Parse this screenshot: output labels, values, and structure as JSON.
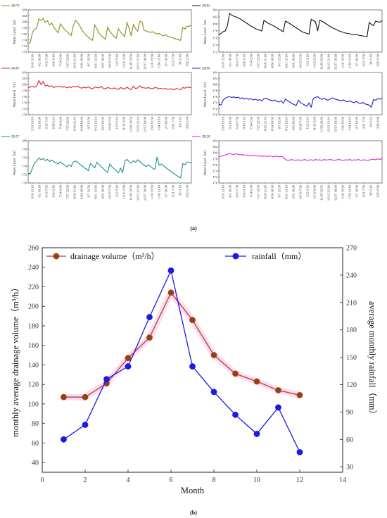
{
  "figure": {
    "panel_a_label": "(a)",
    "panel_b_label": "(b)"
  },
  "chart_data": [
    {
      "type": "line",
      "id": "ZK74",
      "legend": "ZK74",
      "color": "#8c8c1a",
      "ylabel": "Water Level（m）",
      "ylim": [
        170,
        184
      ],
      "yticks": [
        170,
        172,
        174,
        176,
        178,
        180,
        182,
        184
      ],
      "xticks": [
        "5/19 13:10",
        "6/2 10:30",
        "6/16 7:50",
        "6/30 5:10",
        "7/14 2:30",
        "7/27 23:50",
        "8/10 21:10",
        "8/24 18:30",
        "9/7 15:50",
        "9/21 13:10",
        "10/5 10:30",
        "10/19 7:50",
        "11/2 5:10",
        "11/16 2:30",
        "11/29 23:50",
        "12/13 21:10",
        "12/27 18:30",
        "1/10 15:50",
        "1/24 13:10",
        "2/7 10:30",
        "2/21 7:50",
        "3/6 5:10",
        "3/20 2:30"
      ],
      "y": [
        172.8,
        173.2,
        176.5,
        177.5,
        178.0,
        181.0,
        180.5,
        181.2,
        179.8,
        180.4,
        179.0,
        179.6,
        178.2,
        177.2,
        176.4,
        179.4,
        178.3,
        177.5,
        176.8,
        176.2,
        175.5,
        178.6,
        180.5,
        179.8,
        178.7,
        177.3,
        176.4,
        175.6,
        174.9,
        174.4,
        173.9,
        179.0,
        177.7,
        176.3,
        175.5,
        174.9,
        174.2,
        178.3,
        176.9,
        176.0,
        175.2,
        174.6,
        177.7,
        176.7,
        175.9,
        175.1,
        179.8,
        177.9,
        175.3,
        179.2,
        177.8,
        176.9,
        180.2,
        180.0,
        177.2,
        177.0,
        176.7,
        176.5,
        176.8,
        176.3,
        176.0,
        176.2,
        175.7,
        175.4,
        175.8,
        175.2,
        175.0,
        174.9,
        174.5,
        174.3,
        174.1,
        173.9,
        178.2,
        177.6,
        178.6,
        178.5,
        179.0
      ]
    },
    {
      "type": "line",
      "id": "ZK82",
      "legend": "ZK82",
      "color": "#111111",
      "ylabel": "Water Level（m）",
      "ylim": [
        172,
        184
      ],
      "yticks": [
        172,
        174,
        176,
        178,
        180,
        182,
        184
      ],
      "xticks": [
        "5/19 13:10",
        "6/2 10:30",
        "6/16 7:50",
        "6/30 5:10",
        "7/14 2:30",
        "7/27 23:50",
        "8/10 21:10",
        "8/24 18:30",
        "9/7 15:50",
        "9/21 13:10",
        "10/5 10:30",
        "10/19 7:50",
        "11/2 5:10",
        "11/16 2:30",
        "11/29 23:50",
        "12/13 21:10",
        "12/27 18:30",
        "1/10 15:50",
        "1/24 13:10",
        "2/7 10:30",
        "2/21 7:50",
        "3/6 5:10",
        "3/20 2:30"
      ],
      "y": [
        177.0,
        177.3,
        177.8,
        178.0,
        179.5,
        183.0,
        182.5,
        182.2,
        182.0,
        181.7,
        181.4,
        181.0,
        180.6,
        180.2,
        179.8,
        179.4,
        179.0,
        178.7,
        178.4,
        178.2,
        178.0,
        181.0,
        180.6,
        180.2,
        179.9,
        179.6,
        179.3,
        178.9,
        178.5,
        178.2,
        177.8,
        180.8,
        180.5,
        180.1,
        179.7,
        179.3,
        178.9,
        178.5,
        178.1,
        177.7,
        177.5,
        177.3,
        177.1,
        181.3,
        181.0,
        180.6,
        178.0,
        181.0,
        180.8,
        180.4,
        180.0,
        179.6,
        179.2,
        178.9,
        178.6,
        178.3,
        178.0,
        177.8,
        177.6,
        177.4,
        177.3,
        177.2,
        177.0,
        176.9,
        177.0,
        176.8,
        176.7,
        176.6,
        176.5,
        176.4,
        180.4,
        179.9,
        179.5,
        180.8,
        180.6,
        180.5,
        181.0
      ]
    },
    {
      "type": "line",
      "id": "ZK87",
      "legend": "ZK87",
      "color": "#e01f1f",
      "ylabel": "Water Level（m）",
      "ylim": [
        170,
        184
      ],
      "yticks": [
        170,
        172,
        174,
        176,
        178,
        180,
        182,
        184
      ],
      "xticks": [
        "5/19 13:10",
        "6/2 10:30",
        "6/16 7:50",
        "6/30 5:10",
        "7/14 2:30",
        "7/27 23:50",
        "8/10 21:10",
        "8/24 18:30",
        "9/7 15:50",
        "9/21 13:10",
        "10/5 10:30",
        "10/19 7:50",
        "11/2 5:10",
        "11/16 2:30",
        "11/29 23:50",
        "12/13 21:10",
        "12/27 18:30",
        "1/10 15:50",
        "1/24 13:10",
        "2/7 10:30",
        "2/21 7:50",
        "3/6 5:10",
        "3/20 2:30"
      ],
      "y": [
        179.0,
        179.2,
        179.4,
        179.1,
        179.6,
        181.3,
        180.0,
        181.0,
        179.5,
        179.8,
        179.3,
        179.6,
        179.0,
        179.4,
        179.2,
        179.5,
        179.1,
        179.3,
        178.9,
        179.2,
        179.0,
        179.4,
        179.2,
        179.5,
        179.0,
        178.8,
        179.1,
        178.9,
        179.3,
        178.8,
        178.6,
        179.2,
        179.0,
        178.9,
        179.4,
        178.7,
        178.6,
        179.0,
        178.8,
        178.5,
        178.9,
        178.6,
        178.4,
        179.0,
        178.7,
        178.5,
        179.2,
        178.6,
        178.3,
        179.5,
        178.7,
        178.9,
        179.6,
        179.0,
        178.9,
        178.8,
        179.0,
        178.7,
        178.6,
        179.0,
        178.9,
        178.6,
        178.8,
        178.5,
        178.7,
        178.4,
        178.6,
        178.5,
        178.3,
        178.7,
        178.5,
        178.3,
        179.0,
        178.8,
        179.2,
        179.0,
        179.1
      ]
    },
    {
      "type": "line",
      "id": "ZK90",
      "legend": "ZK90",
      "color": "#1a1ad6",
      "ylabel": "Water Level（m）",
      "ylim": [
        170,
        184
      ],
      "yticks": [
        170,
        172,
        174,
        176,
        178,
        180,
        182,
        184
      ],
      "xticks": [
        "5/19 13:10",
        "6/2 10:30",
        "6/16 7:50",
        "6/30 5:10",
        "7/14 2:30",
        "7/27 23:50",
        "8/10 21:10",
        "8/24 18:30",
        "9/7 15:50",
        "9/21 13:10",
        "10/5 10:30",
        "10/19 7:50",
        "11/2 5:10",
        "11/16 2:30",
        "11/29 23:50",
        "12/13 21:10",
        "12/27 18:30",
        "1/10 15:50",
        "1/24 13:10",
        "2/7 10:30",
        "2/21 7:50",
        "3/6 5:10",
        "3/20 2:30"
      ],
      "y": [
        173.5,
        173.2,
        174.8,
        175.5,
        175.8,
        176.0,
        175.7,
        175.9,
        175.6,
        175.8,
        175.4,
        175.6,
        175.2,
        175.5,
        175.1,
        175.3,
        174.9,
        175.2,
        174.8,
        175.0,
        174.6,
        175.3,
        175.4,
        175.1,
        174.8,
        174.6,
        174.9,
        174.4,
        174.2,
        174.6,
        173.8,
        175.2,
        174.6,
        174.2,
        173.7,
        173.4,
        173.0,
        174.8,
        174.0,
        173.6,
        173.2,
        172.8,
        173.9,
        172.5,
        175.4,
        175.7,
        176.0,
        175.4,
        175.1,
        175.5,
        175.0,
        174.8,
        175.3,
        175.6,
        175.2,
        175.0,
        174.8,
        174.6,
        174.9,
        174.5,
        174.3,
        174.6,
        174.2,
        174.0,
        174.4,
        173.9,
        173.7,
        174.1,
        173.6,
        173.4,
        173.2,
        172.5,
        175.0,
        174.8,
        175.3,
        175.2,
        175.3
      ]
    },
    {
      "type": "line",
      "id": "ZK57",
      "legend": "ZK57",
      "color": "#1a8c8c",
      "ylabel": "Water Level（m）",
      "ylim": [
        170,
        180
      ],
      "yticks": [
        170,
        172,
        174,
        176,
        178,
        180
      ],
      "xticks": [
        "5/19 13:10",
        "6/2 10:30",
        "6/16 7:50",
        "6/30 5:10",
        "7/14 2:30",
        "7/27 23:50",
        "8/10 21:10",
        "8/24 18:30",
        "9/7 15:50",
        "9/21 13:10",
        "10/5 10:30",
        "10/19 7:50",
        "11/2 5:10",
        "11/16 2:30",
        "11/29 23:50",
        "12/13 21:10",
        "12/27 18:30",
        "1/10 15:50",
        "1/24 13:10",
        "2/7 10:30",
        "2/21 7:50",
        "3/6 5:10",
        "3/20 2:30"
      ],
      "y": [
        172.3,
        172.2,
        173.5,
        174.8,
        175.2,
        175.9,
        175.5,
        175.8,
        175.3,
        175.6,
        175.1,
        175.4,
        175.0,
        174.8,
        174.5,
        175.0,
        174.6,
        174.2,
        173.8,
        174.3,
        173.9,
        175.0,
        175.2,
        174.9,
        174.5,
        174.1,
        173.7,
        173.3,
        172.9,
        174.6,
        174.1,
        173.6,
        174.9,
        174.4,
        173.9,
        173.4,
        172.9,
        172.5,
        174.5,
        173.9,
        173.4,
        172.9,
        172.4,
        173.5,
        172.5,
        175.2,
        175.6,
        175.0,
        174.7,
        175.3,
        174.9,
        175.5,
        175.1,
        174.6,
        174.2,
        173.9,
        174.3,
        173.9,
        173.5,
        173.2,
        176.2,
        174.2,
        174.5,
        174.1,
        173.7,
        173.3,
        172.9,
        172.5,
        172.2,
        171.8,
        171.5,
        171.2,
        174.6,
        174.3,
        175.0,
        174.8,
        174.9
      ]
    },
    {
      "type": "line",
      "id": "ZK28",
      "legend": "ZK28",
      "color": "#e01fe0",
      "ylabel": "Water Level（m）",
      "ylim": [
        170,
        184
      ],
      "yticks": [
        170,
        172,
        174,
        176,
        178,
        180,
        182,
        184
      ],
      "xticks": [
        "5/19 13:10",
        "6/2 10:30",
        "6/16 7:50",
        "6/30 5:10",
        "7/14 2:30",
        "7/27 23:50",
        "8/10 21:10",
        "8/24 18:30",
        "9/7 15:50",
        "9/21 13:10",
        "10/5 10:30",
        "10/19 7:50",
        "11/2 5:10",
        "11/16 2:30",
        "11/29 23:50",
        "12/13 21:10",
        "12/27 18:30",
        "1/10 15:50",
        "1/24 13:10",
        "2/7 10:30",
        "2/21 7:50",
        "3/6 5:10",
        "3/20 2:30"
      ],
      "y": [
        178.7,
        178.9,
        179.0,
        179.3,
        179.5,
        179.8,
        179.6,
        179.4,
        179.7,
        179.5,
        179.3,
        179.4,
        179.2,
        179.3,
        179.1,
        179.2,
        179.0,
        179.1,
        178.9,
        179.0,
        178.8,
        179.0,
        178.9,
        178.8,
        179.0,
        178.7,
        178.8,
        178.9,
        178.7,
        178.8,
        178.6,
        177.8,
        177.5,
        177.6,
        177.8,
        177.5,
        177.6,
        177.7,
        177.5,
        177.6,
        177.8,
        177.5,
        177.6,
        177.7,
        177.5,
        177.8,
        177.6,
        177.7,
        177.5,
        177.8,
        177.6,
        177.7,
        177.8,
        177.6,
        177.5,
        177.7,
        177.8,
        177.6,
        177.5,
        177.7,
        177.6,
        177.8,
        177.5,
        177.7,
        177.6,
        177.8,
        177.5,
        177.6,
        177.7,
        177.5,
        177.6,
        177.8,
        177.9,
        177.7,
        178.0,
        177.8,
        178.0
      ]
    },
    {
      "type": "line",
      "id": "panel-b",
      "xlabel": "Month",
      "ylabel_left": "monthly average drainage volume（m³/h）",
      "ylabel_right": "average monthly rainfall（mm）",
      "x": [
        1,
        2,
        3,
        4,
        5,
        6,
        7,
        8,
        9,
        10,
        11,
        12
      ],
      "xlim": [
        0,
        14
      ],
      "xticks": [
        0,
        2,
        4,
        6,
        8,
        10,
        12,
        14
      ],
      "ylim_left": [
        30,
        260
      ],
      "yticks_left": [
        40,
        60,
        80,
        100,
        120,
        140,
        160,
        180,
        200,
        220,
        240,
        260
      ],
      "ylim_right": [
        24,
        270
      ],
      "yticks_right": [
        30,
        60,
        90,
        120,
        150,
        180,
        210,
        240,
        270
      ],
      "legend_placement": "top",
      "series": [
        {
          "name": "drainage volume（m³/h）",
          "axis": "left",
          "color": "#c0392b",
          "marker_fill": "#8b4513",
          "values": [
            107,
            107,
            121,
            147,
            168,
            214,
            186,
            150,
            131,
            123,
            114,
            109
          ]
        },
        {
          "name": "rainfall（mm）",
          "axis": "right",
          "color": "#1a1ae6",
          "marker_fill": "#1a1ae6",
          "values": [
            60,
            76,
            126,
            140,
            194,
            245,
            140,
            112,
            87,
            66,
            95,
            46
          ]
        }
      ]
    }
  ]
}
